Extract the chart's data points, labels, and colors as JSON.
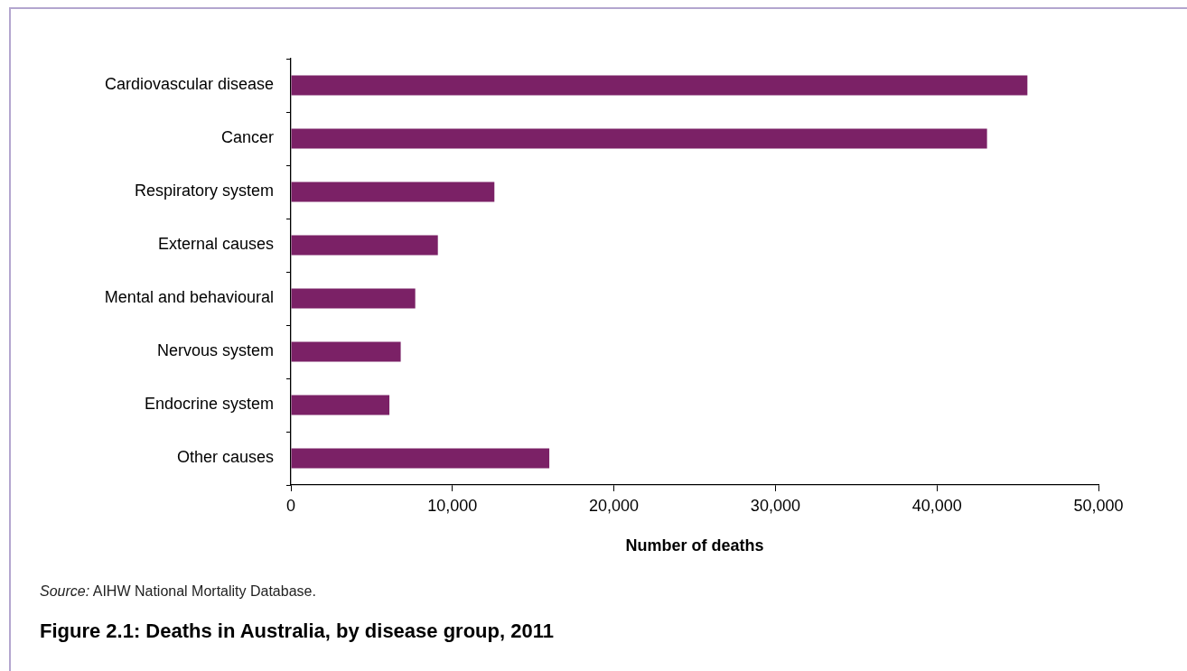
{
  "chart_data": {
    "type": "bar",
    "orientation": "horizontal",
    "title": "Figure 2.1: Deaths in Australia, by disease group, 2011",
    "xlabel": "Number of deaths",
    "annotations": [
      "Source: AIHW National Mortality Database."
    ],
    "categories": [
      "Cardiovascular disease",
      "Cancer",
      "Respiratory system",
      "External causes",
      "Mental and behavioural",
      "Nervous system",
      "Endocrine system",
      "Other causes"
    ],
    "values": [
      45600,
      43100,
      12600,
      9100,
      7700,
      6800,
      6100,
      16000
    ],
    "color": "#7b2166",
    "xlim": [
      0,
      50000
    ],
    "xticks": [
      0,
      {
        "value": 10000,
        "label": "10,000"
      },
      {
        "value": 20000,
        "label": "20,000"
      },
      {
        "value": 30000,
        "label": "30,000"
      },
      {
        "value": 40000,
        "label": "40,000"
      },
      {
        "value": 50000,
        "label": "50,000"
      }
    ],
    "grid": false,
    "legend": false
  }
}
